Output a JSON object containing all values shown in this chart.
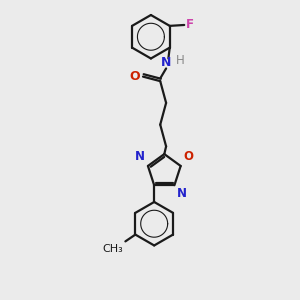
{
  "bg_color": "#ebebeb",
  "bond_color": "#1a1a1a",
  "bond_width": 1.6,
  "N_color": "#2222cc",
  "O_color": "#cc2200",
  "F_color": "#cc44aa",
  "H_color": "#888888",
  "font_size": 8.5,
  "fig_width": 3.0,
  "fig_height": 3.0,
  "xlim": [
    -0.6,
    2.0
  ],
  "ylim": [
    -3.5,
    3.0
  ]
}
